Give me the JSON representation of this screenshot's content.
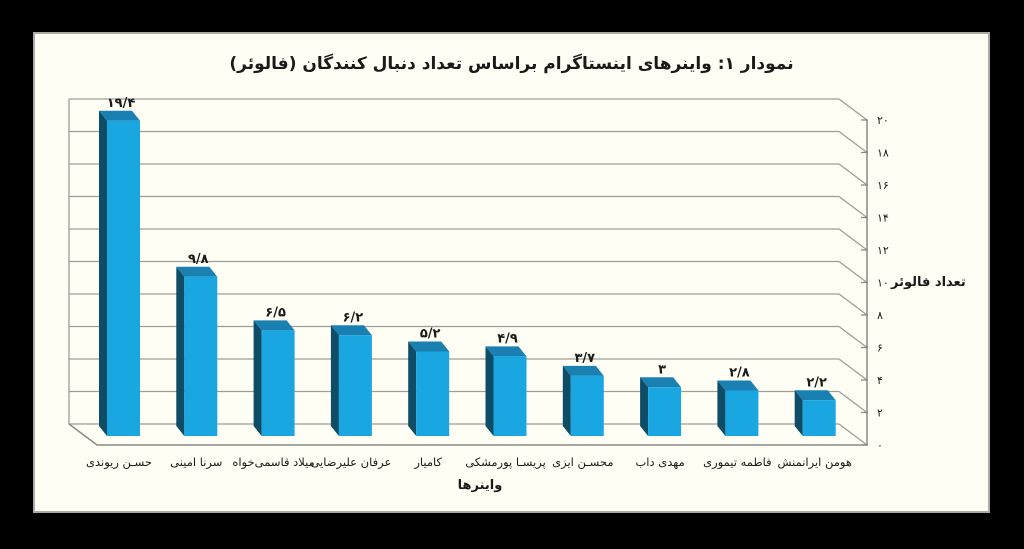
{
  "frame": {
    "background": "#000000"
  },
  "card": {
    "background": "#FFFEF4",
    "border_color": "#ABABA3"
  },
  "chart_data": {
    "type": "bar",
    "style": "3d-column",
    "title": "نمودار ۱: واینرهای اینستاگرام براساس تعداد دنبال کنندگان (فالوئر)",
    "xlabel": "واینرها",
    "ylabel": "تعداد فالوئر",
    "ylim": [
      0,
      20
    ],
    "ytick_step": 2,
    "grid": true,
    "legend": false,
    "categories": [
      "حسـن ریوندی",
      "سرنا امینی",
      "میلاد قاسمی‌خواه",
      "عرفان علیرضایی",
      "کامیار",
      "پریسـا پورمشکی",
      "محسـن ایزی",
      "مهدی داب",
      "فاطمه تیموری",
      "هومن ایرانمنش"
    ],
    "values": [
      19.4,
      9.8,
      6.5,
      6.2,
      5.2,
      4.9,
      3.7,
      3,
      2.8,
      2.2
    ],
    "value_labels": [
      "۱۹/۴",
      "۹/۸",
      "۶/۵",
      "۶/۲",
      "۵/۲",
      "۴/۹",
      "۳/۷",
      "۳",
      "۲/۸",
      "۲/۲"
    ],
    "yticks": [
      {
        "value": 0,
        "label": "۰"
      },
      {
        "value": 2,
        "label": "۲"
      },
      {
        "value": 4,
        "label": "۴"
      },
      {
        "value": 6,
        "label": "۶"
      },
      {
        "value": 8,
        "label": "۸"
      },
      {
        "value": 10,
        "label": "۱۰"
      },
      {
        "value": 12,
        "label": "۱۲"
      },
      {
        "value": 14,
        "label": "۱۴"
      },
      {
        "value": 16,
        "label": "۱۶"
      },
      {
        "value": 18,
        "label": "۱۸"
      },
      {
        "value": 20,
        "label": "۲۰"
      }
    ],
    "colors": {
      "bar_front": "#1AA7E1",
      "bar_side": "#0F4C66",
      "bar_top": "#1A80B2",
      "grid": "#9D9D96",
      "axis": "#8A8A84",
      "text": "#1A1A1A"
    }
  }
}
